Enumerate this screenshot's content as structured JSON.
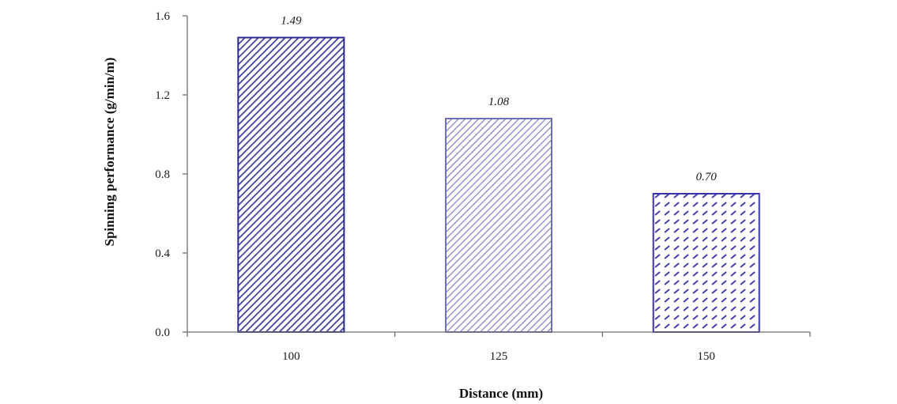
{
  "chart_data": {
    "type": "bar",
    "categories": [
      "100",
      "125",
      "150"
    ],
    "values": [
      1.49,
      1.08,
      0.7
    ],
    "data_labels": [
      "1.49",
      "1.08",
      "0.70"
    ],
    "title": "",
    "xlabel": "Distance (mm)",
    "ylabel": "Spinning performance (g/min/m)",
    "ylim": [
      0,
      1.6
    ],
    "yticks": [
      0.0,
      0.4,
      0.8,
      1.2,
      1.6
    ],
    "ytick_labels": [
      "0.0",
      "0.4",
      "0.8",
      "1.2",
      "1.6"
    ],
    "grid": false,
    "legend": "none",
    "bar_styles": [
      {
        "pattern": "diagonal-dense",
        "stroke": "#2b2b8c",
        "color": "#3a3aa0"
      },
      {
        "pattern": "diagonal-light",
        "stroke": "#6f6fb8",
        "color": "#7d7dc2"
      },
      {
        "pattern": "dashed-horizontal",
        "stroke": "#3535a8",
        "color": "#3f3fb0"
      }
    ]
  }
}
